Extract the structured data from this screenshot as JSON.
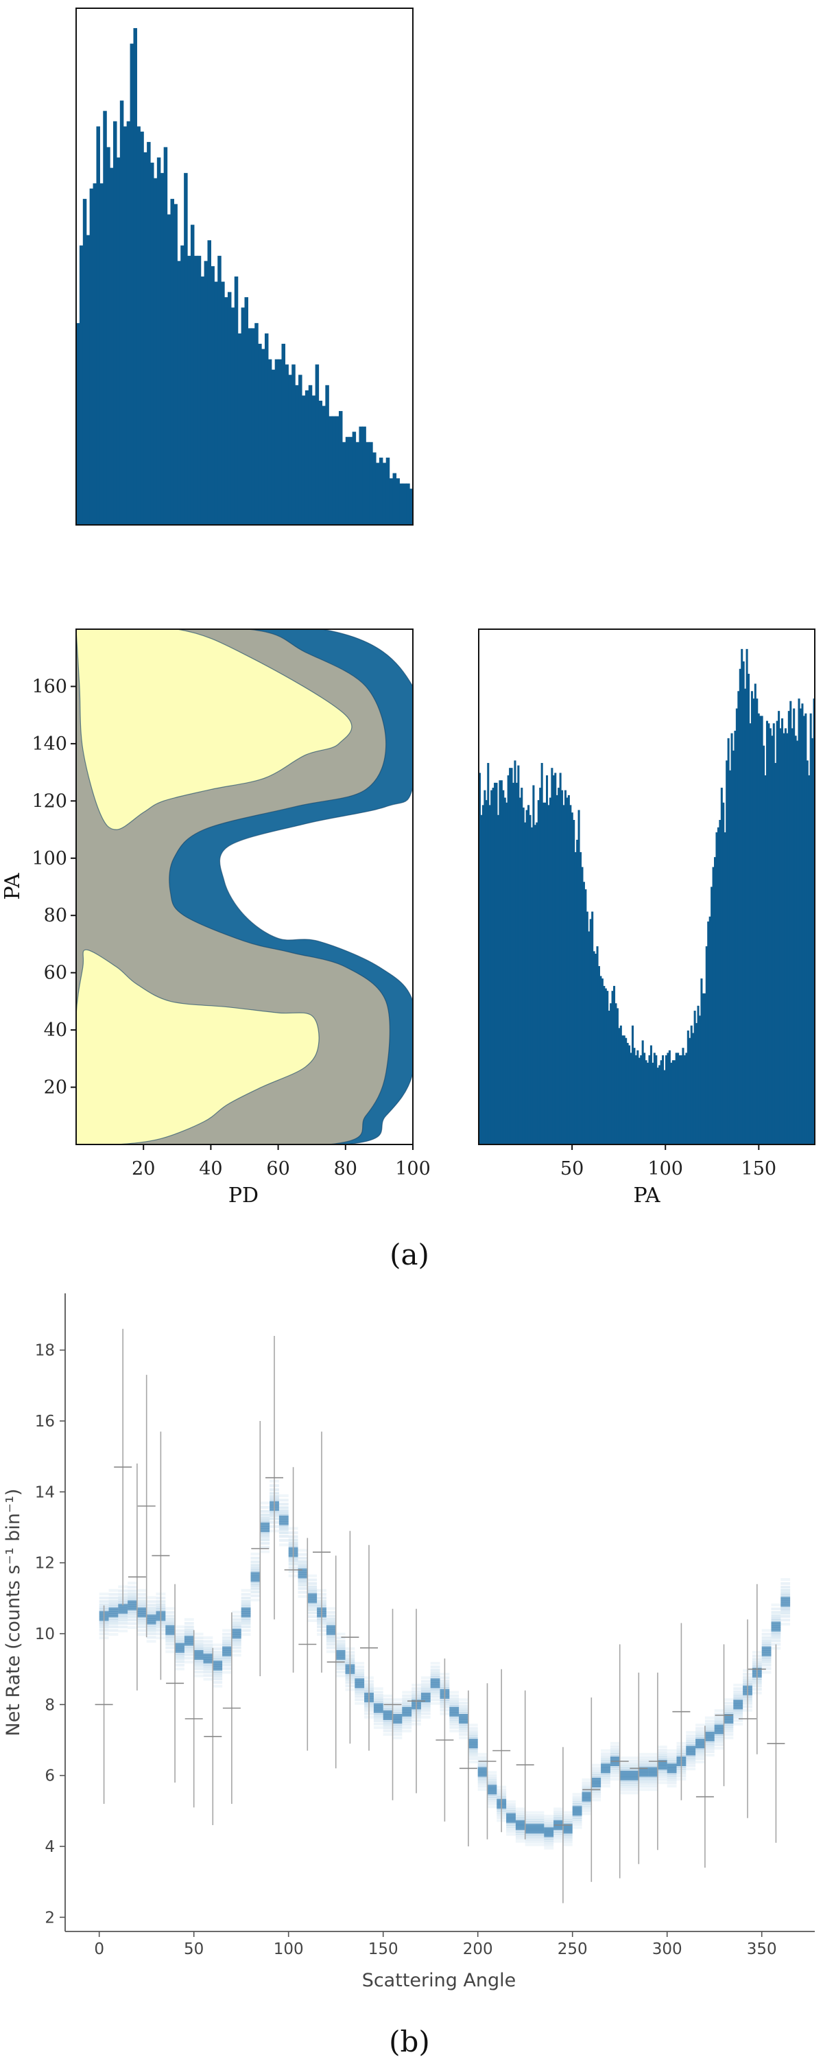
{
  "colors": {
    "hist": "#0b5a8e",
    "contour_outer": "#1f6d9d",
    "contour_mid": "#a7a99b",
    "contour_inner": "#fdfdb9",
    "errbar": "#a6a6a6",
    "band": "#1f77b4"
  },
  "captions": {
    "a": "(a)",
    "b": "(b)"
  },
  "chart_data": [
    {
      "id": "pd-marginal",
      "type": "bar",
      "title": "",
      "xlabel": "",
      "ylabel": "",
      "xlim": [
        0,
        100
      ],
      "ticks_shown": false,
      "values": [
        3.9,
        5.4,
        6.3,
        5.6,
        6.5,
        6.6,
        7.7,
        6.6,
        8.0,
        7.3,
        6.9,
        7.8,
        7.1,
        8.2,
        7.7,
        7.8,
        9.3,
        9.6,
        7.7,
        7.6,
        7.2,
        7.4,
        7.0,
        6.7,
        7.1,
        6.8,
        7.3,
        6.0,
        6.3,
        6.2,
        5.1,
        5.4,
        6.8,
        5.2,
        5.8,
        5.2,
        5.2,
        4.8,
        5.1,
        5.5,
        5.0,
        4.7,
        5.2,
        4.7,
        4.4,
        4.5,
        4.2,
        4.8,
        3.7,
        4.2,
        4.4,
        3.8,
        3.8,
        3.9,
        3.5,
        3.4,
        3.7,
        3.2,
        3.0,
        3.2,
        3.2,
        3.5,
        3.1,
        2.9,
        3.1,
        2.7,
        2.9,
        2.5,
        2.6,
        2.7,
        2.5,
        3.1,
        2.4,
        2.3,
        2.7,
        2.1,
        2.1,
        2.1,
        2.2,
        1.6,
        1.7,
        1.7,
        1.8,
        1.6,
        1.9,
        1.9,
        1.6,
        1.6,
        1.4,
        1.2,
        1.3,
        1.2,
        1.3,
        0.9,
        1.0,
        0.9,
        0.8,
        0.8,
        0.8,
        0.7
      ]
    },
    {
      "id": "pd-pa-contour",
      "type": "contour",
      "title": "",
      "xlabel": "PD",
      "ylabel": "PA",
      "xlim": [
        0,
        100
      ],
      "ylim": [
        0,
        180
      ],
      "xticks": [
        20,
        40,
        60,
        80,
        100
      ],
      "yticks": [
        20,
        40,
        60,
        80,
        100,
        120,
        140,
        160
      ],
      "levels": [
        {
          "name": "outer",
          "points": [
            [
              0,
              180
            ],
            [
              73,
              180
            ],
            [
              100,
              160
            ],
            [
              100,
              125
            ],
            [
              92,
              118
            ],
            [
              68,
              112
            ],
            [
              45,
              104
            ],
            [
              44,
              92
            ],
            [
              50,
              80
            ],
            [
              60,
              72
            ],
            [
              72,
              71
            ],
            [
              90,
              62
            ],
            [
              100,
              50
            ],
            [
              100,
              25
            ],
            [
              92,
              10
            ],
            [
              80,
              0
            ],
            [
              0,
              0
            ]
          ]
        },
        {
          "name": "mid",
          "points": [
            [
              0,
              180
            ],
            [
              51,
              180
            ],
            [
              68,
              172
            ],
            [
              86,
              160
            ],
            [
              92,
              140
            ],
            [
              86,
              124
            ],
            [
              65,
              118
            ],
            [
              38,
              110
            ],
            [
              29,
              100
            ],
            [
              28,
              88
            ],
            [
              32,
              80
            ],
            [
              50,
              71
            ],
            [
              64,
              67
            ],
            [
              80,
              62
            ],
            [
              92,
              50
            ],
            [
              92,
              25
            ],
            [
              86,
              10
            ],
            [
              75,
              0
            ],
            [
              0,
              0
            ]
          ]
        },
        {
          "name": "inner-top",
          "points": [
            [
              0,
              180
            ],
            [
              30,
              180
            ],
            [
              52,
              170
            ],
            [
              80,
              150
            ],
            [
              78,
              140
            ],
            [
              68,
              136
            ],
            [
              56,
              128
            ],
            [
              40,
              124
            ],
            [
              26,
              120
            ],
            [
              20,
              116
            ],
            [
              12,
              110
            ],
            [
              7,
              116
            ],
            [
              2,
              138
            ],
            [
              1,
              160
            ],
            [
              0,
              180
            ]
          ]
        },
        {
          "name": "inner-bottom",
          "points": [
            [
              3,
              68
            ],
            [
              12,
              62
            ],
            [
              18,
              56
            ],
            [
              28,
              50
            ],
            [
              45,
              48
            ],
            [
              60,
              46
            ],
            [
              70,
              45
            ],
            [
              72,
              35
            ],
            [
              68,
              27
            ],
            [
              55,
              20
            ],
            [
              45,
              14
            ],
            [
              38,
              8
            ],
            [
              25,
              2
            ],
            [
              12,
              0
            ],
            [
              0,
              0
            ],
            [
              0,
              15
            ],
            [
              0,
              45
            ],
            [
              2,
              62
            ]
          ]
        }
      ]
    },
    {
      "id": "pa-marginal",
      "type": "bar",
      "title": "",
      "xlabel": "PA",
      "ylabel": "",
      "xlim": [
        0,
        180
      ],
      "xticks": [
        50,
        100,
        150
      ],
      "values": [
        150,
        133,
        137,
        143,
        139,
        154,
        137,
        143,
        144,
        146,
        146,
        133,
        147,
        147,
        143,
        140,
        138,
        149,
        152,
        152,
        146,
        155,
        146,
        153,
        140,
        144,
        136,
        130,
        135,
        137,
        133,
        128,
        145,
        129,
        130,
        139,
        144,
        154,
        138,
        138,
        149,
        137,
        140,
        152,
        149,
        150,
        141,
        144,
        150,
        143,
        137,
        143,
        140,
        141,
        137,
        134,
        131,
        118,
        123,
        135,
        118,
        112,
        106,
        103,
        94,
        86,
        91,
        94,
        78,
        77,
        80,
        72,
        68,
        67,
        64,
        63,
        62,
        54,
        57,
        62,
        64,
        57,
        55,
        47,
        48,
        44,
        44,
        43,
        41,
        40,
        37,
        48,
        39,
        36,
        38,
        35,
        36,
        42,
        37,
        34,
        33,
        36,
        40,
        33,
        37,
        36,
        31,
        32,
        34,
        36,
        30,
        36,
        37,
        38,
        33,
        34,
        34,
        37,
        37,
        36,
        36,
        39,
        36,
        37,
        46,
        43,
        48,
        45,
        54,
        49,
        56,
        52,
        67,
        61,
        61,
        80,
        90,
        92,
        104,
        112,
        116,
        126,
        128,
        131,
        144,
        138,
        126,
        155,
        164,
        151,
        166,
        159,
        167,
        176,
        183,
        192,
        200,
        195,
        184,
        200,
        190,
        170,
        183,
        180,
        186,
        180,
        174,
        173,
        173,
        161,
        149,
        171,
        170,
        168,
        165,
        170,
        154,
        171,
        175,
        168,
        172,
        166,
        168,
        166,
        175,
        179,
        168,
        176,
        165,
        163,
        180,
        176,
        178,
        173,
        174,
        155,
        149,
        174,
        164,
        180
      ]
    },
    {
      "id": "net-rate",
      "type": "line",
      "title": "",
      "xlabel": "Scattering Angle",
      "ylabel": "Net Rate (counts s⁻¹ bin⁻¹)",
      "xlim": [
        -18,
        378
      ],
      "ylim": [
        1.6,
        19.6
      ],
      "xticks": [
        0,
        50,
        100,
        150,
        200,
        250,
        300,
        350
      ],
      "yticks": [
        2,
        4,
        6,
        8,
        10,
        12,
        14,
        16,
        18
      ],
      "band_steps": [
        [
          0,
          10.5
        ],
        [
          5,
          10.6
        ],
        [
          10,
          10.7
        ],
        [
          15,
          10.8
        ],
        [
          20,
          10.6
        ],
        [
          25,
          10.4
        ],
        [
          30,
          10.5
        ],
        [
          35,
          10.1
        ],
        [
          40,
          9.6
        ],
        [
          45,
          9.8
        ],
        [
          50,
          9.4
        ],
        [
          55,
          9.3
        ],
        [
          60,
          9.1
        ],
        [
          65,
          9.5
        ],
        [
          70,
          10.0
        ],
        [
          75,
          10.6
        ],
        [
          80,
          11.6
        ],
        [
          85,
          13.0
        ],
        [
          90,
          13.6
        ],
        [
          95,
          13.2
        ],
        [
          100,
          12.3
        ],
        [
          105,
          11.7
        ],
        [
          110,
          11.0
        ],
        [
          115,
          10.6
        ],
        [
          120,
          10.1
        ],
        [
          125,
          9.4
        ],
        [
          130,
          9.0
        ],
        [
          135,
          8.6
        ],
        [
          140,
          8.2
        ],
        [
          145,
          7.9
        ],
        [
          150,
          7.7
        ],
        [
          155,
          7.6
        ],
        [
          160,
          7.8
        ],
        [
          165,
          8.0
        ],
        [
          170,
          8.2
        ],
        [
          175,
          8.6
        ],
        [
          180,
          8.3
        ],
        [
          185,
          7.8
        ],
        [
          190,
          7.6
        ],
        [
          195,
          6.9
        ],
        [
          200,
          6.1
        ],
        [
          205,
          5.6
        ],
        [
          210,
          5.2
        ],
        [
          215,
          4.8
        ],
        [
          220,
          4.6
        ],
        [
          225,
          4.5
        ],
        [
          230,
          4.5
        ],
        [
          235,
          4.4
        ],
        [
          240,
          4.6
        ],
        [
          245,
          4.5
        ],
        [
          250,
          5.0
        ],
        [
          255,
          5.4
        ],
        [
          260,
          5.8
        ],
        [
          265,
          6.2
        ],
        [
          270,
          6.4
        ],
        [
          275,
          6.0
        ],
        [
          280,
          6.0
        ],
        [
          285,
          6.1
        ],
        [
          290,
          6.1
        ],
        [
          295,
          6.3
        ],
        [
          300,
          6.2
        ],
        [
          305,
          6.4
        ],
        [
          310,
          6.7
        ],
        [
          315,
          6.9
        ],
        [
          320,
          7.1
        ],
        [
          325,
          7.3
        ],
        [
          330,
          7.6
        ],
        [
          335,
          8.0
        ],
        [
          340,
          8.4
        ],
        [
          345,
          8.9
        ],
        [
          350,
          9.5
        ],
        [
          355,
          10.2
        ],
        [
          360,
          10.9
        ]
      ],
      "data_points": [
        {
          "x": 2.5,
          "y": 8.0,
          "err": 2.8
        },
        {
          "x": 12.5,
          "y": 14.7,
          "err": 3.9
        },
        {
          "x": 20,
          "y": 11.6,
          "err": 3.2
        },
        {
          "x": 25,
          "y": 13.6,
          "err": 3.7
        },
        {
          "x": 32.5,
          "y": 12.2,
          "err": 3.5
        },
        {
          "x": 40,
          "y": 8.6,
          "err": 2.8
        },
        {
          "x": 50,
          "y": 7.6,
          "err": 2.5
        },
        {
          "x": 60,
          "y": 7.1,
          "err": 2.5
        },
        {
          "x": 70,
          "y": 7.9,
          "err": 2.7
        },
        {
          "x": 85,
          "y": 12.4,
          "err": 3.6
        },
        {
          "x": 92.5,
          "y": 14.4,
          "err": 4.0
        },
        {
          "x": 102.5,
          "y": 11.8,
          "err": 2.9
        },
        {
          "x": 110,
          "y": 9.7,
          "err": 3.0
        },
        {
          "x": 117.5,
          "y": 12.3,
          "err": 3.4
        },
        {
          "x": 125,
          "y": 9.2,
          "err": 3.0
        },
        {
          "x": 132.5,
          "y": 9.9,
          "err": 3.0
        },
        {
          "x": 142.5,
          "y": 9.6,
          "err": 2.9
        },
        {
          "x": 155,
          "y": 8.0,
          "err": 2.7
        },
        {
          "x": 167.5,
          "y": 8.1,
          "err": 2.6
        },
        {
          "x": 182.5,
          "y": 7.0,
          "err": 2.3
        },
        {
          "x": 195,
          "y": 6.2,
          "err": 2.2
        },
        {
          "x": 205,
          "y": 6.4,
          "err": 2.2
        },
        {
          "x": 212.5,
          "y": 6.7,
          "err": 2.3
        },
        {
          "x": 225,
          "y": 6.3,
          "err": 2.1
        },
        {
          "x": 245,
          "y": 4.6,
          "err": 2.2
        },
        {
          "x": 260,
          "y": 5.6,
          "err": 2.6
        },
        {
          "x": 275,
          "y": 6.4,
          "err": 3.3
        },
        {
          "x": 285,
          "y": 6.2,
          "err": 2.7
        },
        {
          "x": 295,
          "y": 6.4,
          "err": 2.5
        },
        {
          "x": 307.5,
          "y": 7.8,
          "err": 2.5
        },
        {
          "x": 320,
          "y": 5.4,
          "err": 2.0
        },
        {
          "x": 330,
          "y": 7.7,
          "err": 2.0
        },
        {
          "x": 342.5,
          "y": 7.6,
          "err": 2.8
        },
        {
          "x": 347.5,
          "y": 9.0,
          "err": 2.4
        },
        {
          "x": 357.5,
          "y": 6.9,
          "err": 2.8
        }
      ]
    }
  ]
}
